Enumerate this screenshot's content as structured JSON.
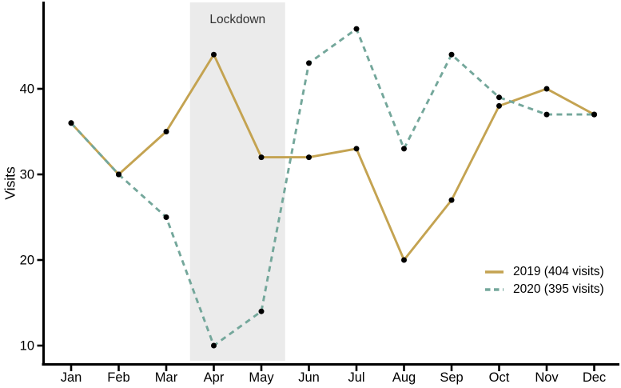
{
  "chart_data": {
    "type": "line",
    "title": "",
    "xlabel": "",
    "ylabel": "Visits",
    "categories": [
      "Jan",
      "Feb",
      "Mar",
      "Apr",
      "May",
      "Jun",
      "Jul",
      "Aug",
      "Sep",
      "Oct",
      "Nov",
      "Dec"
    ],
    "y_ticks": [
      10,
      20,
      30,
      40
    ],
    "ylim": [
      8,
      50
    ],
    "grid": false,
    "legend_position": "right-middle",
    "series": [
      {
        "name": "2019 (404 visits)",
        "values": [
          36,
          30,
          35,
          44,
          32,
          32,
          33,
          20,
          27,
          38,
          40,
          37
        ],
        "color": "#C4A351",
        "style": "solid"
      },
      {
        "name": "2020 (395 visits)",
        "values": [
          36,
          30,
          25,
          10,
          14,
          43,
          47,
          33,
          44,
          39,
          37,
          37
        ],
        "color": "#74A79B",
        "style": "dashed"
      }
    ],
    "annotation": {
      "label": "Lockdown",
      "x_start": 2.5,
      "x_end": 4.5,
      "fill": "#EBEBEB",
      "text_color": "#303030"
    },
    "point_color": "#000000",
    "axis_color": "#000000",
    "background": "#FFFFFF"
  }
}
